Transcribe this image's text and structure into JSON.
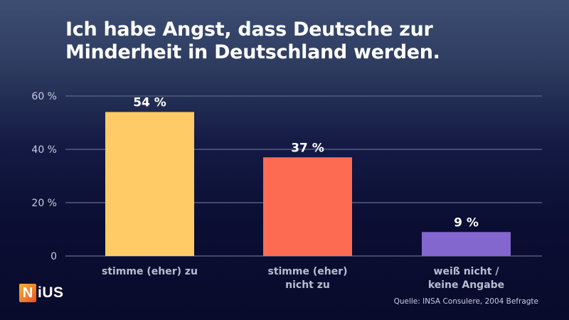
{
  "header": {
    "title_line1": "Ich habe Angst, dass Deutsche zur",
    "title_line2": "Minderheit in Deutschland werden."
  },
  "chart_data": {
    "type": "bar",
    "title": "Ich habe Angst, dass Deutsche zur Minderheit in Deutschland werden.",
    "xlabel": "",
    "ylabel": "",
    "categories": [
      [
        "stimme (eher) zu"
      ],
      [
        "stimme (eher)",
        "nicht zu"
      ],
      [
        "weiß nicht /",
        "keine Angabe"
      ]
    ],
    "values": [
      54,
      37,
      9
    ],
    "data_labels": [
      "54 %",
      "37 %",
      "9 %"
    ],
    "colors": [
      "#fecb67",
      "#fd6b52",
      "#8466cf"
    ],
    "ylim": [
      0,
      60
    ],
    "yticks": [
      0,
      20,
      40,
      60
    ],
    "ytick_labels": [
      "0",
      "20 %",
      "40 %",
      "60 %"
    ],
    "grid": true,
    "legend": "none"
  },
  "brand": {
    "logo_first": "N",
    "logo_rest": "iUS"
  },
  "footer": {
    "source": "Quelle: INSA Consulere, 2004 Befragte"
  }
}
